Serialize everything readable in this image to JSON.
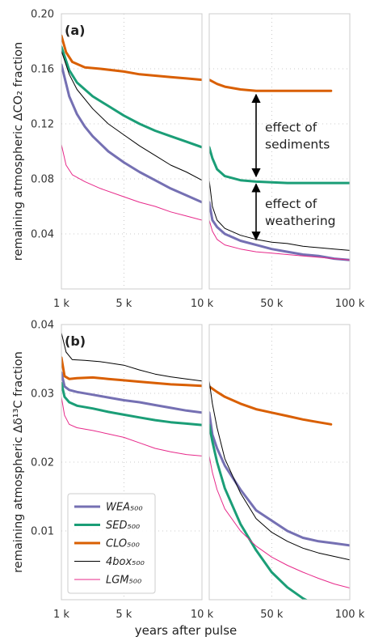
{
  "chart_data": [
    {
      "type": "line",
      "panel_label": "(a)",
      "ylabel": "remaining atmospheric ΔCO₂ fraction",
      "ylim": [
        0,
        0.2
      ],
      "yticks": [
        0.04,
        0.08,
        0.12,
        0.16,
        0.2
      ],
      "ytick_labels": [
        "0.04",
        "0.08",
        "0.12",
        "0.16",
        "0.20"
      ],
      "grid": true,
      "annotations": [
        {
          "lines": [
            "effect of",
            "sediments"
          ],
          "arrow_year": 40000,
          "arrow_from": 0.143,
          "arrow_to": 0.08
        },
        {
          "lines": [
            "effect of",
            "weathering"
          ],
          "arrow_year": 40000,
          "arrow_from": 0.078,
          "arrow_to": 0.034
        }
      ],
      "series": [
        {
          "name": "WEA₅₀₀",
          "color": "#7570b3",
          "width": 3,
          "left": [
            [
              1000,
              0.163
            ],
            [
              1500,
              0.14
            ],
            [
              2000,
              0.127
            ],
            [
              2500,
              0.118
            ],
            [
              3000,
              0.111
            ],
            [
              4000,
              0.1
            ],
            [
              5000,
              0.092
            ],
            [
              6000,
              0.085
            ],
            [
              7000,
              0.079
            ],
            [
              8000,
              0.073
            ],
            [
              9000,
              0.068
            ],
            [
              10000,
              0.063
            ]
          ],
          "right": [
            [
              10000,
              0.063
            ],
            [
              12000,
              0.05
            ],
            [
              15000,
              0.045
            ],
            [
              20000,
              0.04
            ],
            [
              30000,
              0.035
            ],
            [
              40000,
              0.032
            ],
            [
              50000,
              0.029
            ],
            [
              60000,
              0.027
            ],
            [
              70000,
              0.025
            ],
            [
              80000,
              0.024
            ],
            [
              90000,
              0.022
            ],
            [
              100000,
              0.021
            ]
          ]
        },
        {
          "name": "SED₅₀₀",
          "color": "#1b9e77",
          "width": 3,
          "left": [
            [
              1000,
              0.176
            ],
            [
              1500,
              0.159
            ],
            [
              2000,
              0.15
            ],
            [
              3000,
              0.14
            ],
            [
              4000,
              0.133
            ],
            [
              5000,
              0.126
            ],
            [
              6000,
              0.12
            ],
            [
              7000,
              0.115
            ],
            [
              8000,
              0.111
            ],
            [
              9000,
              0.107
            ],
            [
              10000,
              0.103
            ]
          ],
          "right": [
            [
              10000,
              0.103
            ],
            [
              12000,
              0.095
            ],
            [
              15000,
              0.087
            ],
            [
              20000,
              0.082
            ],
            [
              30000,
              0.079
            ],
            [
              40000,
              0.078
            ],
            [
              60000,
              0.077
            ],
            [
              80000,
              0.077
            ],
            [
              100000,
              0.077
            ]
          ]
        },
        {
          "name": "CLO₅₀₀",
          "color": "#d95f02",
          "width": 3,
          "left": [
            [
              1000,
              0.184
            ],
            [
              1300,
              0.172
            ],
            [
              1700,
              0.165
            ],
            [
              2500,
              0.161
            ],
            [
              3500,
              0.16
            ],
            [
              5000,
              0.158
            ],
            [
              6000,
              0.156
            ],
            [
              7000,
              0.155
            ],
            [
              8000,
              0.154
            ],
            [
              9000,
              0.153
            ],
            [
              10000,
              0.152
            ]
          ],
          "right": [
            [
              10000,
              0.152
            ],
            [
              15000,
              0.149
            ],
            [
              20000,
              0.147
            ],
            [
              30000,
              0.145
            ],
            [
              40000,
              0.144
            ],
            [
              50000,
              0.144
            ],
            [
              60000,
              0.144
            ],
            [
              70000,
              0.144
            ],
            [
              80000,
              0.144
            ],
            [
              88000,
              0.144
            ]
          ]
        },
        {
          "name": "4box₅₀₀",
          "color": "#000000",
          "width": 1,
          "left": [
            [
              1000,
              0.173
            ],
            [
              1500,
              0.156
            ],
            [
              2000,
              0.145
            ],
            [
              3000,
              0.131
            ],
            [
              4000,
              0.12
            ],
            [
              5000,
              0.112
            ],
            [
              6000,
              0.104
            ],
            [
              7000,
              0.097
            ],
            [
              8000,
              0.09
            ],
            [
              9000,
              0.085
            ],
            [
              10000,
              0.079
            ]
          ],
          "right": [
            [
              10000,
              0.079
            ],
            [
              12000,
              0.06
            ],
            [
              15000,
              0.05
            ],
            [
              20000,
              0.044
            ],
            [
              30000,
              0.039
            ],
            [
              40000,
              0.036
            ],
            [
              50000,
              0.034
            ],
            [
              60000,
              0.033
            ],
            [
              70000,
              0.031
            ],
            [
              80000,
              0.03
            ],
            [
              90000,
              0.029
            ],
            [
              100000,
              0.028
            ]
          ]
        },
        {
          "name": "LGM₅₀₀",
          "color": "#e7298a",
          "width": 1,
          "left": [
            [
              1000,
              0.105
            ],
            [
              1300,
              0.09
            ],
            [
              1700,
              0.083
            ],
            [
              2500,
              0.078
            ],
            [
              3500,
              0.073
            ],
            [
              5000,
              0.067
            ],
            [
              6000,
              0.063
            ],
            [
              7000,
              0.06
            ],
            [
              8000,
              0.056
            ],
            [
              9000,
              0.053
            ],
            [
              10000,
              0.05
            ]
          ],
          "right": [
            [
              10000,
              0.05
            ],
            [
              12000,
              0.042
            ],
            [
              15000,
              0.036
            ],
            [
              20000,
              0.032
            ],
            [
              30000,
              0.029
            ],
            [
              40000,
              0.027
            ],
            [
              50000,
              0.026
            ],
            [
              60000,
              0.025
            ],
            [
              70000,
              0.024
            ],
            [
              80000,
              0.023
            ],
            [
              90000,
              0.022
            ],
            [
              100000,
              0.021
            ]
          ]
        }
      ]
    },
    {
      "type": "line",
      "panel_label": "(b)",
      "ylabel": "remaining atmospheric Δδ¹³C fraction",
      "ylim": [
        0,
        0.04
      ],
      "yticks": [
        0.01,
        0.02,
        0.03,
        0.04
      ],
      "ytick_labels": [
        "0.01",
        "0.02",
        "0.03",
        "0.04"
      ],
      "grid": true,
      "legend": "lower-left",
      "series": [
        {
          "name": "WEA₅₀₀",
          "color": "#7570b3",
          "width": 3,
          "left": [
            [
              1000,
              0.033
            ],
            [
              1200,
              0.031
            ],
            [
              1500,
              0.0305
            ],
            [
              2000,
              0.0302
            ],
            [
              3000,
              0.0298
            ],
            [
              4000,
              0.0294
            ],
            [
              5000,
              0.029
            ],
            [
              6000,
              0.0287
            ],
            [
              7000,
              0.0283
            ],
            [
              8000,
              0.0279
            ],
            [
              9000,
              0.0275
            ],
            [
              10000,
              0.0272
            ]
          ],
          "right": [
            [
              10000,
              0.0272
            ],
            [
              12000,
              0.024
            ],
            [
              15000,
              0.022
            ],
            [
              20000,
              0.0195
            ],
            [
              30000,
              0.016
            ],
            [
              40000,
              0.013
            ],
            [
              50000,
              0.0115
            ],
            [
              60000,
              0.01
            ],
            [
              70000,
              0.009
            ],
            [
              80000,
              0.0085
            ],
            [
              90000,
              0.0082
            ],
            [
              100000,
              0.0079
            ]
          ]
        },
        {
          "name": "SED₅₀₀",
          "color": "#1b9e77",
          "width": 3,
          "left": [
            [
              1000,
              0.0315
            ],
            [
              1200,
              0.0295
            ],
            [
              1500,
              0.0287
            ],
            [
              2000,
              0.0282
            ],
            [
              3000,
              0.0278
            ],
            [
              4000,
              0.0273
            ],
            [
              5000,
              0.0269
            ],
            [
              6000,
              0.0265
            ],
            [
              7000,
              0.0261
            ],
            [
              8000,
              0.0258
            ],
            [
              9000,
              0.0256
            ],
            [
              10000,
              0.0254
            ]
          ],
          "right": [
            [
              10000,
              0.0254
            ],
            [
              12000,
              0.023
            ],
            [
              15000,
              0.02
            ],
            [
              20000,
              0.0162
            ],
            [
              30000,
              0.011
            ],
            [
              40000,
              0.0072
            ],
            [
              50000,
              0.004
            ],
            [
              60000,
              0.0018
            ],
            [
              70000,
              0.0002
            ],
            [
              80000,
              -0.001
            ]
          ]
        },
        {
          "name": "CLO₅₀₀",
          "color": "#d95f02",
          "width": 3,
          "left": [
            [
              1000,
              0.0352
            ],
            [
              1200,
              0.0325
            ],
            [
              1500,
              0.0321
            ],
            [
              2000,
              0.0322
            ],
            [
              3000,
              0.0323
            ],
            [
              4000,
              0.0321
            ],
            [
              5000,
              0.0319
            ],
            [
              6000,
              0.0317
            ],
            [
              7000,
              0.0315
            ],
            [
              8000,
              0.0313
            ],
            [
              9000,
              0.0312
            ],
            [
              10000,
              0.0311
            ]
          ],
          "right": [
            [
              10000,
              0.031
            ],
            [
              15000,
              0.0302
            ],
            [
              20000,
              0.0295
            ],
            [
              30000,
              0.0285
            ],
            [
              40000,
              0.0277
            ],
            [
              50000,
              0.0272
            ],
            [
              60000,
              0.0267
            ],
            [
              70000,
              0.0262
            ],
            [
              80000,
              0.0258
            ],
            [
              88000,
              0.0255
            ]
          ]
        },
        {
          "name": "4box₅₀₀",
          "color": "#000000",
          "width": 1,
          "left": [
            [
              1000,
              0.0388
            ],
            [
              1300,
              0.036
            ],
            [
              1700,
              0.0349
            ],
            [
              2500,
              0.0348
            ],
            [
              3500,
              0.0346
            ],
            [
              5000,
              0.0341
            ],
            [
              6000,
              0.0334
            ],
            [
              7000,
              0.0328
            ],
            [
              8000,
              0.0324
            ],
            [
              9000,
              0.0321
            ],
            [
              10000,
              0.0318
            ]
          ],
          "right": [
            [
              10000,
              0.0318
            ],
            [
              12000,
              0.0285
            ],
            [
              15000,
              0.025
            ],
            [
              20000,
              0.0205
            ],
            [
              30000,
              0.0155
            ],
            [
              40000,
              0.0118
            ],
            [
              50000,
              0.0098
            ],
            [
              60000,
              0.0085
            ],
            [
              70000,
              0.0075
            ],
            [
              80000,
              0.0068
            ],
            [
              90000,
              0.0063
            ],
            [
              100000,
              0.0058
            ]
          ]
        },
        {
          "name": "LGM₅₀₀",
          "color": "#e7298a",
          "width": 1,
          "left": [
            [
              1000,
              0.0295
            ],
            [
              1200,
              0.0268
            ],
            [
              1500,
              0.0255
            ],
            [
              2000,
              0.025
            ],
            [
              3000,
              0.0246
            ],
            [
              4000,
              0.0241
            ],
            [
              5000,
              0.0236
            ],
            [
              6000,
              0.0228
            ],
            [
              7000,
              0.022
            ],
            [
              8000,
              0.0215
            ],
            [
              9000,
              0.0211
            ],
            [
              10000,
              0.0209
            ]
          ],
          "right": [
            [
              10000,
              0.0209
            ],
            [
              12000,
              0.0185
            ],
            [
              15000,
              0.016
            ],
            [
              20000,
              0.0132
            ],
            [
              30000,
              0.01
            ],
            [
              40000,
              0.0078
            ],
            [
              50000,
              0.0062
            ],
            [
              60000,
              0.005
            ],
            [
              70000,
              0.004
            ],
            [
              80000,
              0.0031
            ],
            [
              90000,
              0.0023
            ],
            [
              100000,
              0.0017
            ]
          ]
        }
      ]
    }
  ],
  "xaxis": {
    "label": "years after pulse",
    "left_range": [
      1000,
      10000
    ],
    "right_range": [
      10000,
      100000
    ],
    "left_ticks": [
      1000,
      5000,
      10000
    ],
    "left_tick_labels": [
      "1 k",
      "5 k",
      "10 k"
    ],
    "right_ticks": [
      10000,
      50000,
      100000
    ],
    "right_tick_labels": [
      "",
      "50 k",
      "100 k"
    ]
  }
}
